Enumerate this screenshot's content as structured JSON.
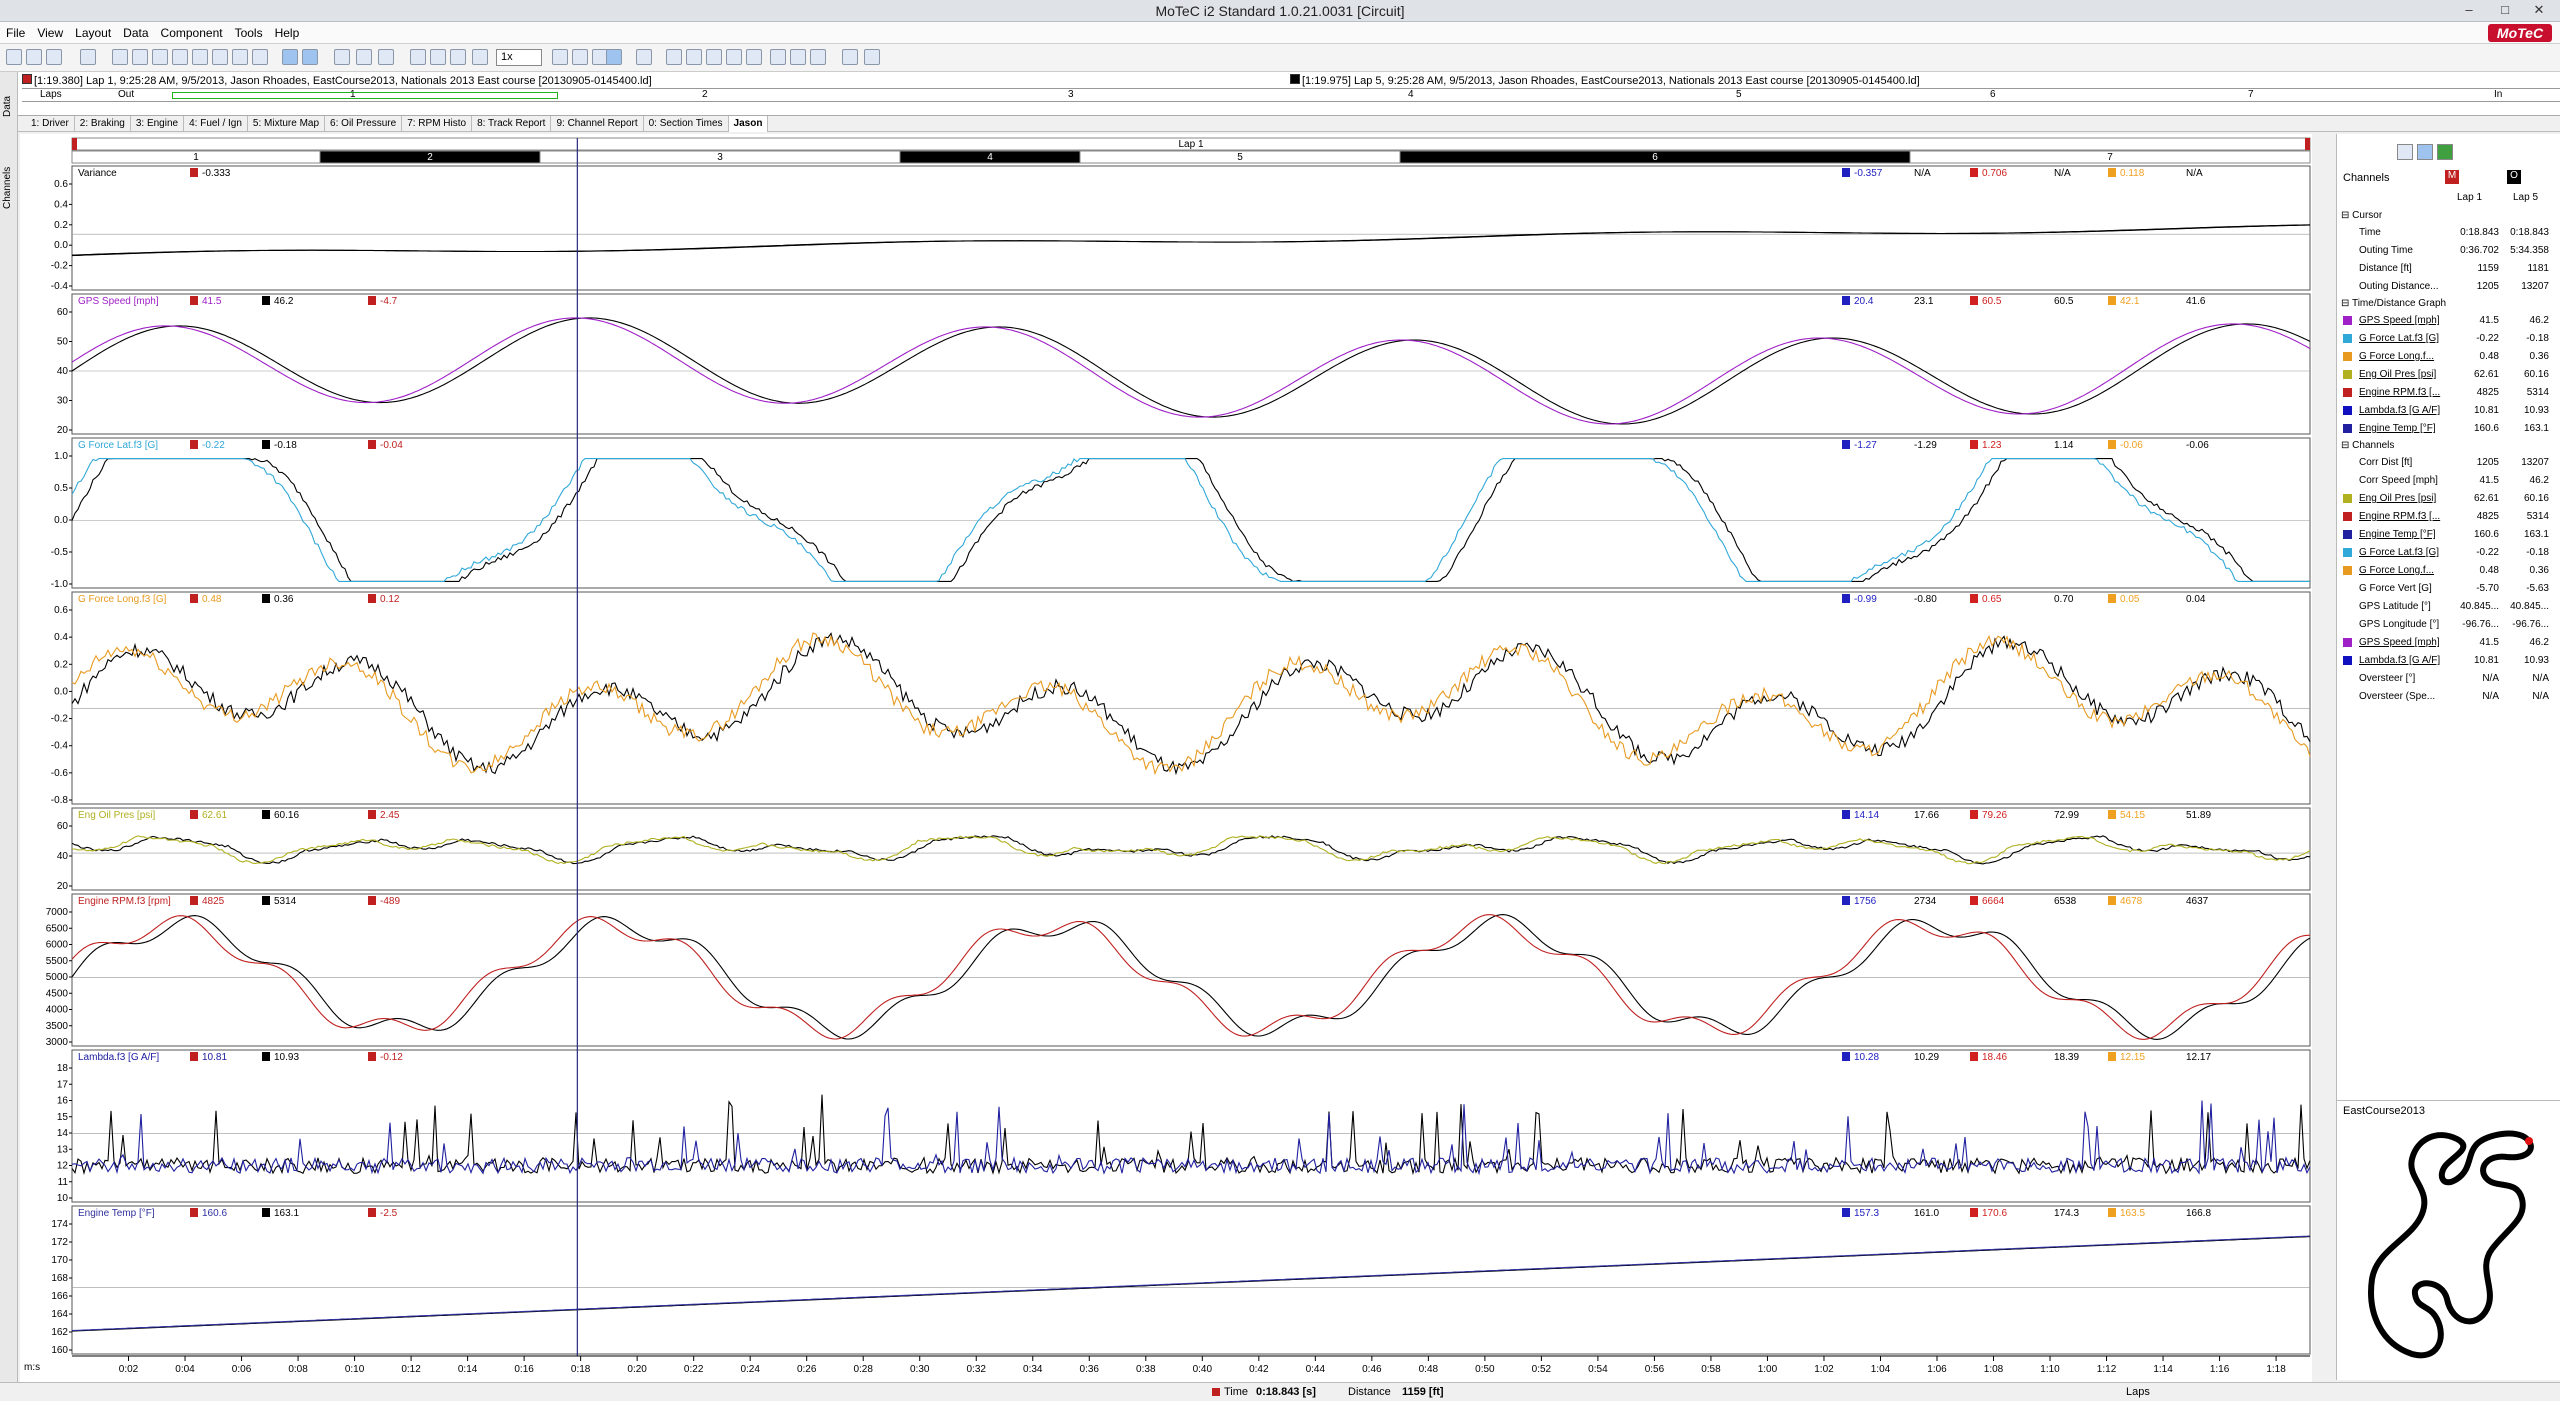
{
  "window": {
    "title": "MoTeC i2 Standard 1.0.21.0031  [Circuit]"
  },
  "menu": [
    "File",
    "View",
    "Layout",
    "Data",
    "Component",
    "Tools",
    "Help"
  ],
  "logo": "MoTeC",
  "toolbar": {
    "zoom": "1x"
  },
  "laps": {
    "lap_a": "[1:19.380] Lap 1, 9:25:28 AM, 9/5/2013, Jason Rhoades, EastCourse2013, Nationals 2013 East course [20130905-0145400.ld]",
    "lap_b": "[1:19.975] Lap 5, 9:25:28 AM, 9/5/2013, Jason Rhoades, EastCourse2013, Nationals 2013 East course [20130905-0145400.ld]",
    "row1_labels": [
      "Laps",
      "Out",
      "1",
      "2",
      "3",
      "4",
      "5",
      "6",
      "7",
      "In"
    ],
    "row2_labels": []
  },
  "sidetabs": [
    "Data",
    "Channels"
  ],
  "worksheets": [
    "1: Driver",
    "2: Braking",
    "3: Engine",
    "4: Fuel / Ign",
    "5: Mixture Map",
    "6: Oil Pressure",
    "7: RPM Histo",
    "8: Track Report",
    "9: Channel Report",
    "0: Section Times",
    "Jason"
  ],
  "graph": {
    "lap_title": "Lap 1",
    "sections": [
      "1",
      "2",
      "3",
      "4",
      "5",
      "6",
      "7"
    ],
    "x_unit": "m:s",
    "x_ticks": [
      "0:02",
      "0:04",
      "0:06",
      "0:08",
      "0:10",
      "0:12",
      "0:14",
      "0:16",
      "0:18",
      "0:20",
      "0:22",
      "0:24",
      "0:26",
      "0:28",
      "0:30",
      "0:32",
      "0:34",
      "0:36",
      "0:38",
      "0:40",
      "0:42",
      "0:44",
      "0:46",
      "0:48",
      "0:50",
      "0:52",
      "0:54",
      "0:56",
      "0:58",
      "1:00",
      "1:02",
      "1:04",
      "1:06",
      "1:08",
      "1:10",
      "1:12",
      "1:14",
      "1:16",
      "1:18"
    ],
    "panes": [
      {
        "name": "Variance",
        "color": "#000000",
        "cm": "-0.333",
        "cr": "",
        "cd": "",
        "stats": [
          "-0.357",
          "N/A",
          "0.706",
          "N/A",
          "0.118",
          "N/A"
        ],
        "yticks": [
          "0.6",
          "0.4",
          "0.2",
          "0.0",
          "-0.2",
          "-0.4"
        ]
      },
      {
        "name": "GPS Speed [mph]",
        "color": "#a020c8",
        "cm": "41.5",
        "cr": "46.2",
        "cd": "-4.7",
        "stats": [
          "20.4",
          "23.1",
          "60.5",
          "60.5",
          "42.1",
          "41.6"
        ],
        "yticks": [
          "60",
          "50",
          "40",
          "30",
          "20"
        ]
      },
      {
        "name": "G Force Lat.f3 [G]",
        "color": "#30a8d8",
        "cm": "-0.22",
        "cr": "-0.18",
        "cd": "-0.04",
        "stats": [
          "-1.27",
          "-1.29",
          "1.23",
          "1.14",
          "-0.06",
          "-0.06"
        ],
        "yticks": [
          "1.0",
          "0.5",
          "0.0",
          "-0.5",
          "-1.0"
        ]
      },
      {
        "name": "G Force Long.f3 [G]",
        "color": "#e89a20",
        "cm": "0.48",
        "cr": "0.36",
        "cd": "0.12",
        "stats": [
          "-0.99",
          "-0.80",
          "0.65",
          "0.70",
          "0.05",
          "0.04"
        ],
        "yticks": [
          "0.6",
          "0.4",
          "0.2",
          "0.0",
          "-0.2",
          "-0.4",
          "-0.6",
          "-0.8"
        ]
      },
      {
        "name": "Eng Oil Pres [psi]",
        "color": "#b0b020",
        "cm": "62.61",
        "cr": "60.16",
        "cd": "2.45",
        "stats": [
          "14.14",
          "17.66",
          "79.26",
          "72.99",
          "54.15",
          "51.89"
        ],
        "yticks": [
          "60",
          "40",
          "20"
        ]
      },
      {
        "name": "Engine RPM.f3 [rpm]",
        "color": "#c02020",
        "cm": "4825",
        "cr": "5314",
        "cd": "-489",
        "stats": [
          "1756",
          "2734",
          "6664",
          "6538",
          "4678",
          "4637"
        ],
        "yticks": [
          "7000",
          "6500",
          "6000",
          "5500",
          "5000",
          "4500",
          "4000",
          "3500",
          "3000"
        ]
      },
      {
        "name": "Lambda.f3 [G A/F]",
        "color": "#2020a0",
        "cm": "10.81",
        "cr": "10.93",
        "cd": "-0.12",
        "stats": [
          "10.28",
          "10.29",
          "18.46",
          "18.39",
          "12.15",
          "12.17"
        ],
        "yticks": [
          "18",
          "17",
          "16",
          "15",
          "14",
          "13",
          "12",
          "11",
          "10"
        ]
      },
      {
        "name": "Engine Temp [°F]",
        "color": "#3030a0",
        "cm": "160.6",
        "cr": "163.1",
        "cd": "-2.5",
        "stats": [
          "157.3",
          "161.0",
          "170.6",
          "174.3",
          "163.5",
          "166.8"
        ],
        "yticks": [
          "174",
          "172",
          "170",
          "168",
          "166",
          "164",
          "162",
          "160"
        ]
      }
    ]
  },
  "channels_panel": {
    "title": "Channels",
    "col_a": "Lap 1",
    "col_b": "Lap 5",
    "groups": [
      {
        "label": "Cursor",
        "rows": [
          {
            "name": "Time",
            "a": "0:18.843",
            "b": "0:18.843",
            "color": ""
          },
          {
            "name": "Outing Time",
            "a": "0:36.702",
            "b": "5:34.358",
            "color": ""
          },
          {
            "name": "Distance [ft]",
            "a": "1159",
            "b": "1181",
            "color": ""
          },
          {
            "name": "Outing Distance...",
            "a": "1205",
            "b": "13207",
            "color": ""
          }
        ]
      },
      {
        "label": "Time/Distance Graph",
        "rows": [
          {
            "name": "GPS Speed [mph]",
            "a": "41.5",
            "b": "46.2",
            "color": "#a020c8"
          },
          {
            "name": "G Force Lat.f3 [G]",
            "a": "-0.22",
            "b": "-0.18",
            "color": "#30a8d8"
          },
          {
            "name": "G Force Long.f...",
            "a": "0.48",
            "b": "0.36",
            "color": "#e89a20"
          },
          {
            "name": "Eng Oil Pres [psi]",
            "a": "62.61",
            "b": "60.16",
            "color": "#b0b020"
          },
          {
            "name": "Engine RPM.f3 [...",
            "a": "4825",
            "b": "5314",
            "color": "#c02020"
          },
          {
            "name": "Lambda.f3 [G A/F]",
            "a": "10.81",
            "b": "10.93",
            "color": "#1010c0"
          },
          {
            "name": "Engine Temp [°F]",
            "a": "160.6",
            "b": "163.1",
            "color": "#2020a0"
          }
        ]
      },
      {
        "label": "Channels",
        "rows": [
          {
            "name": "Corr Dist [ft]",
            "a": "1205",
            "b": "13207",
            "color": ""
          },
          {
            "name": "Corr Speed [mph]",
            "a": "41.5",
            "b": "46.2",
            "color": ""
          },
          {
            "name": "Eng Oil Pres [psi]",
            "a": "62.61",
            "b": "60.16",
            "color": "#b0b020"
          },
          {
            "name": "Engine RPM.f3 [...",
            "a": "4825",
            "b": "5314",
            "color": "#c02020"
          },
          {
            "name": "Engine Temp [°F]",
            "a": "160.6",
            "b": "163.1",
            "color": "#2020a0"
          },
          {
            "name": "G Force Lat.f3 [G]",
            "a": "-0.22",
            "b": "-0.18",
            "color": "#30a8d8"
          },
          {
            "name": "G Force Long.f...",
            "a": "0.48",
            "b": "0.36",
            "color": "#e89a20"
          },
          {
            "name": "G Force Vert [G]",
            "a": "-5.70",
            "b": "-5.63",
            "color": ""
          },
          {
            "name": "GPS Latitude [°]",
            "a": "40.845...",
            "b": "40.845...",
            "color": ""
          },
          {
            "name": "GPS Longitude [°]",
            "a": "-96.76...",
            "b": "-96.76...",
            "color": ""
          },
          {
            "name": "GPS Speed [mph]",
            "a": "41.5",
            "b": "46.2",
            "color": "#a020c8"
          },
          {
            "name": "Lambda.f3 [G A/F]",
            "a": "10.81",
            "b": "10.93",
            "color": "#1010c0"
          },
          {
            "name": "Oversteer [°]",
            "a": "N/A",
            "b": "N/A",
            "color": ""
          },
          {
            "name": "Oversteer (Spe...",
            "a": "N/A",
            "b": "N/A",
            "color": ""
          }
        ]
      }
    ]
  },
  "track": {
    "name": "EastCourse2013"
  },
  "status": {
    "time_label": "Time",
    "time_value": "0:18.843 [s]",
    "dist_label": "Distance",
    "dist_value": "1159 [ft]",
    "laps_label": "Laps"
  }
}
